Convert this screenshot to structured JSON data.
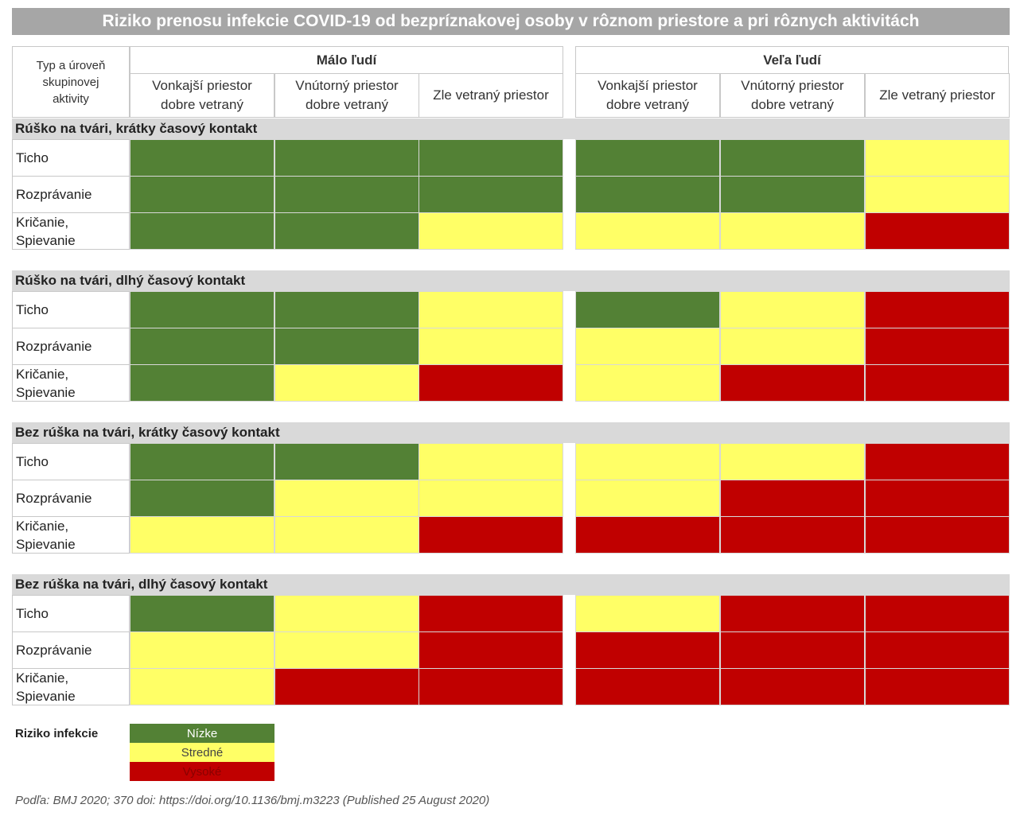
{
  "title": "Riziko prenosu infekcie COVID-19 od bezpríznakovej osoby v rôznom priestore a pri rôznych aktivitách",
  "header": {
    "corner": "Typ a úroveň skupinovej aktivity",
    "groups": [
      {
        "label": "Málo ľudí",
        "columns": [
          "Vonkajší priestor dobre vetraný",
          "Vnútorný priestor dobre vetraný",
          "Zle vetraný priestor"
        ]
      },
      {
        "label": "Veľa ľudí",
        "columns": [
          "Vonkajší priestor dobre vetraný",
          "Vnútorný priestor dobre vetraný",
          "Zle vetraný priestor"
        ]
      }
    ]
  },
  "sections": [
    {
      "title": "Rúško na tvári, krátky časový kontakt",
      "rows": [
        {
          "label": "Ticho",
          "cells": [
            "#538135",
            "#538135",
            "#538135",
            "#538135",
            "#538135",
            "#ffff66"
          ]
        },
        {
          "label": "Rozprávanie",
          "cells": [
            "#538135",
            "#538135",
            "#538135",
            "#538135",
            "#538135",
            "#ffff66"
          ]
        },
        {
          "label": "Kričanie, Spievanie",
          "cells": [
            "#538135",
            "#538135",
            "#ffff66",
            "#ffff66",
            "#ffff66",
            "#c00000"
          ]
        }
      ]
    },
    {
      "title": "Rúško na tvári, dlhý časový kontakt",
      "rows": [
        {
          "label": "Ticho",
          "cells": [
            "#538135",
            "#538135",
            "#ffff66",
            "#538135",
            "#ffff66",
            "#c00000"
          ]
        },
        {
          "label": "Rozprávanie",
          "cells": [
            "#538135",
            "#538135",
            "#ffff66",
            "#ffff66",
            "#ffff66",
            "#c00000"
          ]
        },
        {
          "label": "Kričanie, Spievanie",
          "cells": [
            "#538135",
            "#ffff66",
            "#c00000",
            "#ffff66",
            "#c00000",
            "#c00000"
          ]
        }
      ]
    },
    {
      "title": "Bez rúška na tvári, krátky časový kontakt",
      "rows": [
        {
          "label": "Ticho",
          "cells": [
            "#538135",
            "#538135",
            "#ffff66",
            "#ffff66",
            "#ffff66",
            "#c00000"
          ]
        },
        {
          "label": "Rozprávanie",
          "cells": [
            "#538135",
            "#ffff66",
            "#ffff66",
            "#ffff66",
            "#c00000",
            "#c00000"
          ]
        },
        {
          "label": "Kričanie, Spievanie",
          "cells": [
            "#ffff66",
            "#ffff66",
            "#c00000",
            "#c00000",
            "#c00000",
            "#c00000"
          ]
        }
      ]
    },
    {
      "title": "Bez rúška na tvári, dlhý časový kontakt",
      "rows": [
        {
          "label": "Ticho",
          "cells": [
            "#538135",
            "#ffff66",
            "#c00000",
            "#ffff66",
            "#c00000",
            "#c00000"
          ]
        },
        {
          "label": "Rozprávanie",
          "cells": [
            "#ffff66",
            "#ffff66",
            "#c00000",
            "#c00000",
            "#c00000",
            "#c00000"
          ]
        },
        {
          "label": "Kričanie, Spievanie",
          "cells": [
            "#ffff66",
            "#c00000",
            "#c00000",
            "#c00000",
            "#c00000",
            "#c00000"
          ]
        }
      ]
    }
  ],
  "legend": {
    "title": "Riziko infekcie",
    "items": [
      {
        "label": "Nízke",
        "color": "#538135"
      },
      {
        "label": "Stredné",
        "color": "#ffff66"
      },
      {
        "label": "Vysoké",
        "color": "#c00000"
      }
    ]
  },
  "source": "Podľa: BMJ 2020; 370 doi: https://doi.org/10.1136/bmj.m3223 (Published 25 August 2020)"
}
